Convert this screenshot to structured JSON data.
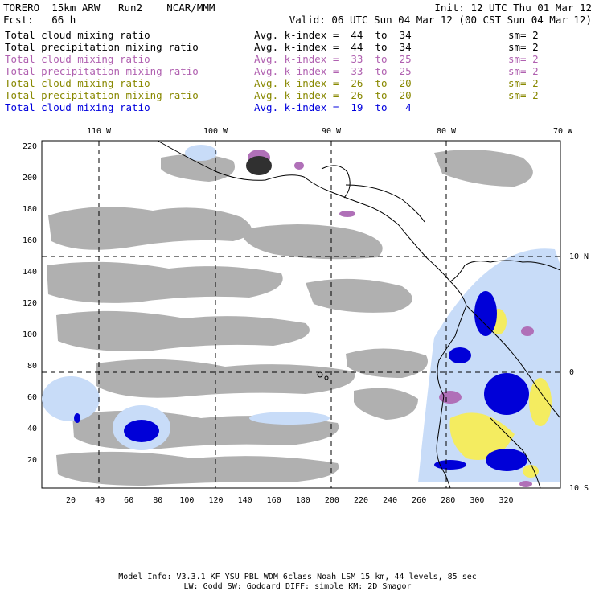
{
  "header": {
    "model": "TORERO  15km ARW   Run2    NCAR/MMM",
    "init": "Init: 12 UTC Thu 01 Mar 12",
    "fcst": "Fcst:   66 h",
    "valid": "Valid: 06 UTC Sun 04 Mar 12 (00 CST Sun 04 Mar 12)"
  },
  "legend": [
    {
      "field": "Total cloud mixing ratio",
      "range": "Avg. k-index =  44  to  34",
      "smooth": "sm= 2",
      "color": "#000000"
    },
    {
      "field": "Total precipitation mixing ratio",
      "range": "Avg. k-index =  44  to  34",
      "smooth": "sm= 2",
      "color": "#000000"
    },
    {
      "field": "Total cloud mixing ratio",
      "range": "Avg. k-index =  33  to  25",
      "smooth": "sm= 2",
      "color": "#b060b0"
    },
    {
      "field": "Total precipitation mixing ratio",
      "range": "Avg. k-index =  33  to  25",
      "smooth": "sm= 2",
      "color": "#b060b0"
    },
    {
      "field": "Total cloud mixing ratio",
      "range": "Avg. k-index =  26  to  20",
      "smooth": "sm= 2",
      "color": "#888800"
    },
    {
      "field": "Total precipitation mixing ratio",
      "range": "Avg. k-index =  26  to  20",
      "smooth": "sm= 2",
      "color": "#888800"
    },
    {
      "field": "Total cloud mixing ratio",
      "range": "Avg. k-index =  19  to   4",
      "smooth": "",
      "color": "#0000dd"
    }
  ],
  "map": {
    "lon_labels": [
      "110 W",
      "100 W",
      "90 W",
      "80 W",
      "70 W"
    ],
    "lat_labels": [
      "10 N",
      "0",
      "10 S"
    ],
    "y_ticks": [
      "220",
      "200",
      "180",
      "160",
      "140",
      "120",
      "100",
      "80",
      "60",
      "40",
      "20"
    ],
    "x_ticks": [
      "20",
      "40",
      "60",
      "80",
      "100",
      "120",
      "140",
      "160",
      "180",
      "200",
      "220",
      "240",
      "260",
      "280",
      "300",
      "320"
    ]
  },
  "footer": {
    "line1": "Model Info: V3.3.1    KF      YSU PBL   WDM 6class   Noah LSM  15 km,    44 levels,    85 sec",
    "line2": "LW: Godd SW: Goddard DIFF: simple KM: 2D Smagor"
  }
}
